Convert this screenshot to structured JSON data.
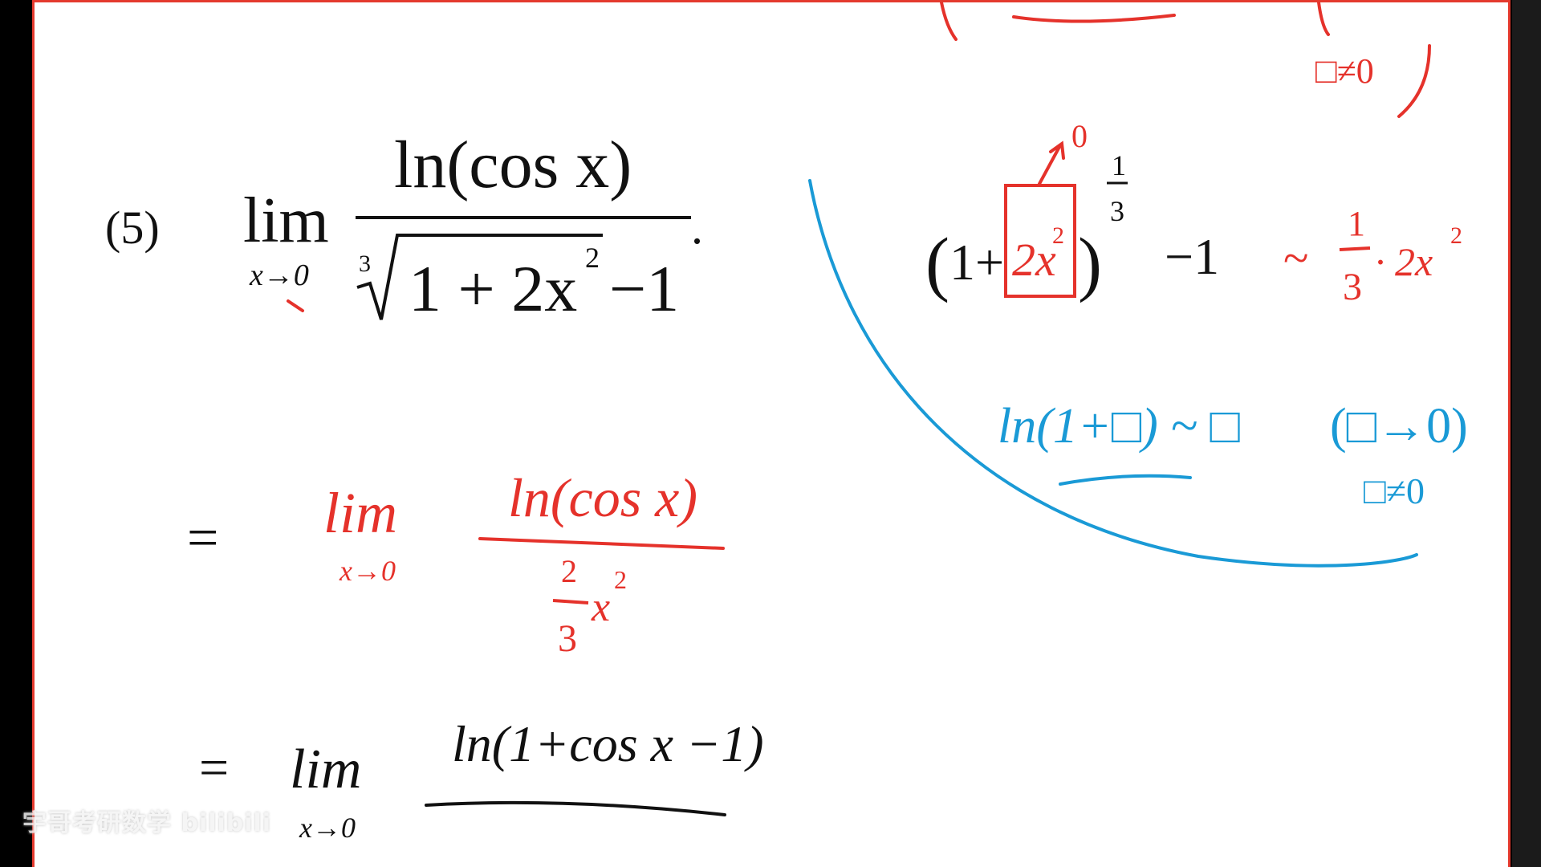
{
  "problem": {
    "number": "(5)",
    "lim_word": "lim",
    "lim_sub": "x→0",
    "numerator": "ln(cos x)",
    "root_index": "3",
    "radicand": "1 + 2x",
    "radicand_exp": "2",
    "minus_one": "−1",
    "period": "."
  },
  "step1": {
    "eq": "=",
    "lim_word": "lim",
    "lim_sub": "x→0",
    "numerator": "ln(cos x)",
    "denom_frac_num": "2",
    "denom_frac_den": "3",
    "denom_var": "x",
    "denom_exp": "2"
  },
  "step2": {
    "eq": "=",
    "lim_word": "lim",
    "lim_sub": "x→0",
    "numerator": "ln(1+cos x −1)"
  },
  "note_equiv": {
    "open": "(",
    "one_plus": "1+",
    "boxed": "2x",
    "boxed_exp": "2",
    "close": ")",
    "arrow_to": "0",
    "power_num": "1",
    "power_den": "3",
    "minus_one": "−1",
    "tilde": "~",
    "coef_num": "1",
    "coef_den": "3",
    "dot_term": "· 2x",
    "dot_term_exp": "2"
  },
  "note_ln": {
    "expr": "ln(1+□) ~ □",
    "cond": "(□→0)",
    "cond2": "□≠0"
  },
  "note_top": {
    "cond2": "□≠0"
  },
  "watermark": {
    "text": "宇哥考研数学 bilibili"
  },
  "colors": {
    "ink": "#111111",
    "red": "#e5322b",
    "blue": "#1a9ad6",
    "frame": "#e43a2e"
  }
}
